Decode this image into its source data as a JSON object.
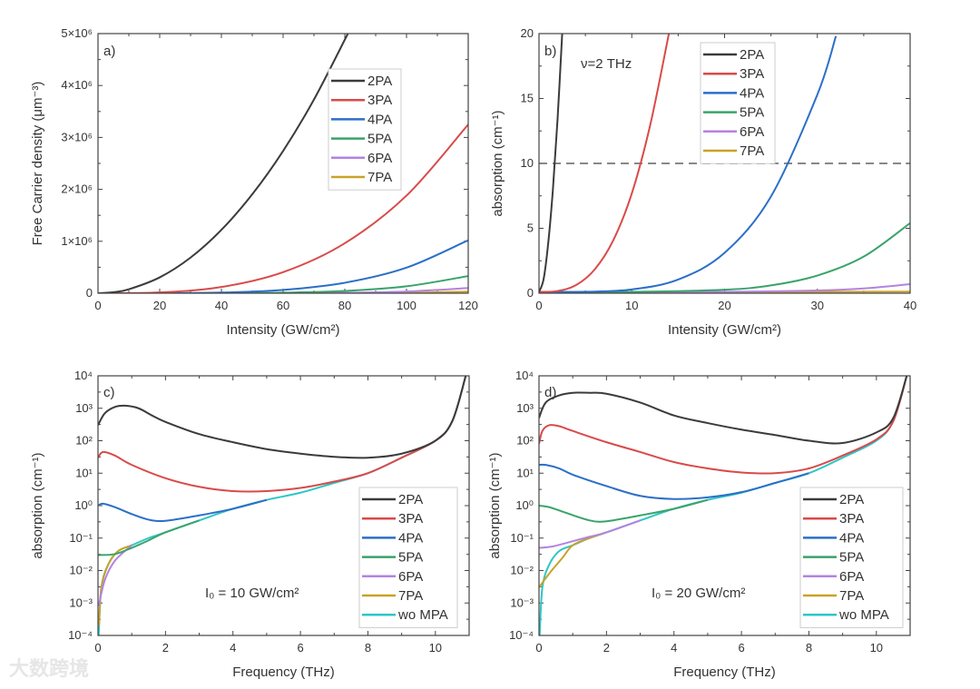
{
  "watermark": "大数跨境",
  "colors": {
    "2PA": "#3b3b3b",
    "3PA": "#d94a4a",
    "4PA": "#2b6fc8",
    "5PA": "#3aa36a",
    "6PA": "#b383e0",
    "7PA": "#c9a227",
    "wo MPA": "#2ec6c6",
    "dashed": "#888888"
  },
  "chart_data": [
    {
      "type": "line",
      "panel_label": "a)",
      "xlabel": "Intensity (GW/cm²)",
      "ylabel": "Free Carrier density (μm⁻³)",
      "xlim": [
        0,
        120
      ],
      "ylim": [
        0,
        5000000
      ],
      "yscale": "linear",
      "xticks": [
        0,
        20,
        40,
        60,
        80,
        100,
        120
      ],
      "xtick_labels": [
        "0",
        "20",
        "40",
        "60",
        "80",
        "100",
        "120"
      ],
      "yticks": [
        0,
        1000000,
        2000000,
        3000000,
        4000000,
        5000000
      ],
      "ytick_labels": [
        "0",
        "1×10⁶",
        "2×10⁶",
        "3×10⁶",
        "4×10⁶",
        "5×10⁶"
      ],
      "legend": "upper-center",
      "series": [
        {
          "name": "2PA",
          "x": [
            0,
            5,
            10,
            20,
            30,
            40,
            50,
            60,
            70,
            81
          ],
          "y": [
            0,
            20000,
            76000,
            305000,
            686000,
            1220000,
            1905000,
            2740000,
            3730000,
            5000000
          ]
        },
        {
          "name": "3PA",
          "x": [
            0,
            20,
            40,
            60,
            80,
            100,
            120
          ],
          "y": [
            0,
            15000,
            120000,
            406000,
            963000,
            1880000,
            3250000
          ]
        },
        {
          "name": "4PA",
          "x": [
            0,
            20,
            40,
            60,
            80,
            100,
            120
          ],
          "y": [
            0,
            800,
            12600,
            64000,
            201500,
            492000,
            1020000
          ]
        },
        {
          "name": "5PA",
          "x": [
            0,
            20,
            40,
            60,
            80,
            100,
            120
          ],
          "y": [
            0,
            0,
            1400,
            10300,
            43500,
            133000,
            330000
          ]
        },
        {
          "name": "6PA",
          "x": [
            0,
            40,
            60,
            80,
            100,
            120
          ],
          "y": [
            0,
            0,
            1600,
            8800,
            33500,
            100000
          ]
        },
        {
          "name": "7PA",
          "x": [
            0,
            60,
            80,
            100,
            120
          ],
          "y": [
            0,
            0,
            1800,
            8400,
            30000
          ]
        }
      ]
    },
    {
      "type": "line",
      "panel_label": "b)",
      "annotation": "ν=2 THz",
      "xlabel": "Intensity (GW/cm²)",
      "ylabel": "absorption (cm⁻¹)",
      "xlim": [
        0,
        40
      ],
      "ylim": [
        0,
        20
      ],
      "yscale": "linear",
      "xticks": [
        0,
        10,
        20,
        30,
        40
      ],
      "xtick_labels": [
        "0",
        "10",
        "20",
        "30",
        "40"
      ],
      "yticks": [
        0,
        5,
        10,
        15,
        20
      ],
      "ytick_labels": [
        "0",
        "5",
        "10",
        "15",
        "20"
      ],
      "hline": 10,
      "legend": "upper-center",
      "series": [
        {
          "name": "2PA",
          "x": [
            0,
            0.5,
            1,
            1.5,
            2,
            2.5
          ],
          "y": [
            0.1,
            1.1,
            3.9,
            8,
            13.4,
            20
          ]
        },
        {
          "name": "3PA",
          "x": [
            0,
            2,
            4,
            6,
            8,
            10,
            12,
            14
          ],
          "y": [
            0.1,
            0.17,
            0.63,
            1.83,
            4.07,
            7.68,
            13,
            20
          ]
        },
        {
          "name": "4PA",
          "x": [
            0,
            5,
            10,
            15,
            20,
            25,
            30,
            32
          ],
          "y": [
            0.1,
            0.11,
            0.29,
            1.05,
            3.11,
            7.45,
            15.3,
            19.8
          ]
        },
        {
          "name": "5PA",
          "x": [
            0,
            10,
            20,
            25,
            30,
            35,
            40
          ],
          "y": [
            0.1,
            0.105,
            0.27,
            0.6,
            1.36,
            2.82,
            5.4
          ]
        },
        {
          "name": "6PA",
          "x": [
            0,
            20,
            30,
            35,
            40
          ],
          "y": [
            0.1,
            0.11,
            0.21,
            0.37,
            0.7
          ]
        },
        {
          "name": "7PA",
          "x": [
            0,
            40
          ],
          "y": [
            0.06,
            0.12
          ]
        }
      ]
    },
    {
      "type": "line",
      "panel_label": "c)",
      "annotation": "I₀ = 10 GW/cm²",
      "xlabel": "Frequency (THz)",
      "ylabel": "absorption (cm⁻¹)",
      "xlim": [
        0,
        11
      ],
      "ylim": [
        0.0001,
        10000
      ],
      "yscale": "log",
      "xticks": [
        0,
        2,
        4,
        6,
        8,
        10
      ],
      "xtick_labels": [
        "0",
        "2",
        "4",
        "6",
        "8",
        "10"
      ],
      "yticks": [
        0.0001,
        0.001,
        0.01,
        0.1,
        1,
        10,
        100,
        1000,
        10000
      ],
      "ytick_labels": [
        "10⁻⁴",
        "10⁻³",
        "10⁻²",
        "10⁻¹",
        "10⁰",
        "10¹",
        "10²",
        "10³",
        "10⁴"
      ],
      "legend": "lower-right",
      "series": [
        {
          "name": "2PA",
          "x": [
            0,
            0.2,
            0.5,
            0.8,
            1.2,
            1.6,
            2,
            3,
            4,
            5,
            6,
            7,
            8,
            9,
            10,
            10.5,
            10.9
          ],
          "y": [
            300,
            700,
            1100,
            1200,
            1000,
            600,
            380,
            160,
            90,
            55,
            40,
            32,
            30,
            40,
            100,
            400,
            10000
          ]
        },
        {
          "name": "3PA",
          "x": [
            0,
            0.15,
            0.5,
            1,
            2,
            3,
            4,
            5,
            6,
            7,
            8,
            9,
            10,
            10.5,
            10.9
          ],
          "y": [
            30,
            45,
            35,
            18,
            7,
            3.8,
            2.8,
            2.8,
            3.5,
            5.5,
            10,
            30,
            100,
            400,
            10000
          ]
        },
        {
          "name": "4PA",
          "x": [
            0,
            0.15,
            0.5,
            1,
            1.5,
            2,
            3,
            4,
            5
          ],
          "y": [
            1,
            1.15,
            0.9,
            0.55,
            0.37,
            0.34,
            0.5,
            0.8,
            1.5
          ]
        },
        {
          "name": "5PA",
          "x": [
            0,
            0.5,
            1,
            1.5,
            2,
            3
          ],
          "y": [
            0.03,
            0.032,
            0.05,
            0.085,
            0.15,
            0.35
          ]
        },
        {
          "name": "6PA",
          "x": [
            0.02,
            0.2,
            0.5,
            1
          ],
          "y": [
            0.0008,
            0.005,
            0.02,
            0.06
          ]
        },
        {
          "name": "7PA",
          "x": [
            0.03,
            0.1,
            0.3,
            0.6,
            1
          ],
          "y": [
            0.0002,
            0.003,
            0.015,
            0.04,
            0.06
          ]
        },
        {
          "name": "wo MPA",
          "x": [
            0.02,
            0.1,
            0.3,
            0.6,
            1,
            1.5,
            2,
            3,
            4,
            5,
            6,
            7,
            8,
            9,
            10,
            10.5,
            10.9
          ],
          "y": [
            0.0001,
            0.003,
            0.015,
            0.04,
            0.06,
            0.1,
            0.15,
            0.35,
            0.8,
            1.5,
            2.5,
            5,
            10,
            30,
            100,
            400,
            10000
          ]
        }
      ]
    },
    {
      "type": "line",
      "panel_label": "d)",
      "annotation": "I₀ = 20 GW/cm²",
      "xlabel": "Frequency (THz)",
      "ylabel": "absorption (cm⁻¹)",
      "xlim": [
        0,
        11
      ],
      "ylim": [
        0.0001,
        10000
      ],
      "yscale": "log",
      "xticks": [
        0,
        2,
        4,
        6,
        8,
        10
      ],
      "xtick_labels": [
        "0",
        "2",
        "4",
        "6",
        "8",
        "10"
      ],
      "yticks": [
        0.0001,
        0.001,
        0.01,
        0.1,
        1,
        10,
        100,
        1000,
        10000
      ],
      "ytick_labels": [
        "10⁻⁴",
        "10⁻³",
        "10⁻²",
        "10⁻¹",
        "10⁰",
        "10¹",
        "10²",
        "10³",
        "10⁴"
      ],
      "legend": "lower-right",
      "series": [
        {
          "name": "2PA",
          "x": [
            0,
            0.2,
            0.6,
            1,
            1.5,
            2,
            3,
            4,
            5,
            6,
            7,
            8,
            9,
            10,
            10.5,
            10.9
          ],
          "y": [
            500,
            1500,
            2500,
            3000,
            3000,
            2800,
            1500,
            600,
            350,
            220,
            150,
            100,
            85,
            180,
            500,
            10000
          ]
        },
        {
          "name": "3PA",
          "x": [
            0,
            0.1,
            0.3,
            0.6,
            1,
            2,
            3,
            4,
            5,
            6,
            7,
            8,
            9,
            10,
            10.5,
            10.9
          ],
          "y": [
            80,
            200,
            300,
            280,
            200,
            90,
            45,
            22,
            14,
            10.5,
            10,
            14,
            35,
            110,
            400,
            10000
          ]
        },
        {
          "name": "4PA",
          "x": [
            0,
            0.2,
            0.6,
            1,
            2,
            3,
            4,
            5,
            6,
            7,
            8
          ],
          "y": [
            18,
            18,
            14,
            9,
            4,
            2,
            1.6,
            1.8,
            2.6,
            5,
            10
          ]
        },
        {
          "name": "5PA",
          "x": [
            0,
            0.3,
            0.8,
            1.5,
            2,
            3,
            4,
            5
          ],
          "y": [
            1,
            0.9,
            0.6,
            0.35,
            0.33,
            0.5,
            0.8,
            1.5
          ]
        },
        {
          "name": "6PA",
          "x": [
            0,
            0.4,
            1,
            1.5,
            2,
            3
          ],
          "y": [
            0.05,
            0.055,
            0.08,
            0.11,
            0.15,
            0.35
          ]
        },
        {
          "name": "7PA",
          "x": [
            0,
            0.3,
            0.7,
            1,
            1.5,
            2
          ],
          "y": [
            0.003,
            0.008,
            0.025,
            0.06,
            0.1,
            0.15
          ]
        },
        {
          "name": "wo MPA",
          "x": [
            0.02,
            0.1,
            0.3,
            0.6,
            1,
            1.5,
            2,
            3,
            4,
            5,
            6,
            7,
            8,
            9,
            10,
            10.5,
            10.9
          ],
          "y": [
            0.0001,
            0.003,
            0.015,
            0.04,
            0.06,
            0.1,
            0.15,
            0.35,
            0.8,
            1.5,
            2.5,
            5,
            10,
            30,
            100,
            400,
            10000
          ]
        }
      ]
    }
  ]
}
